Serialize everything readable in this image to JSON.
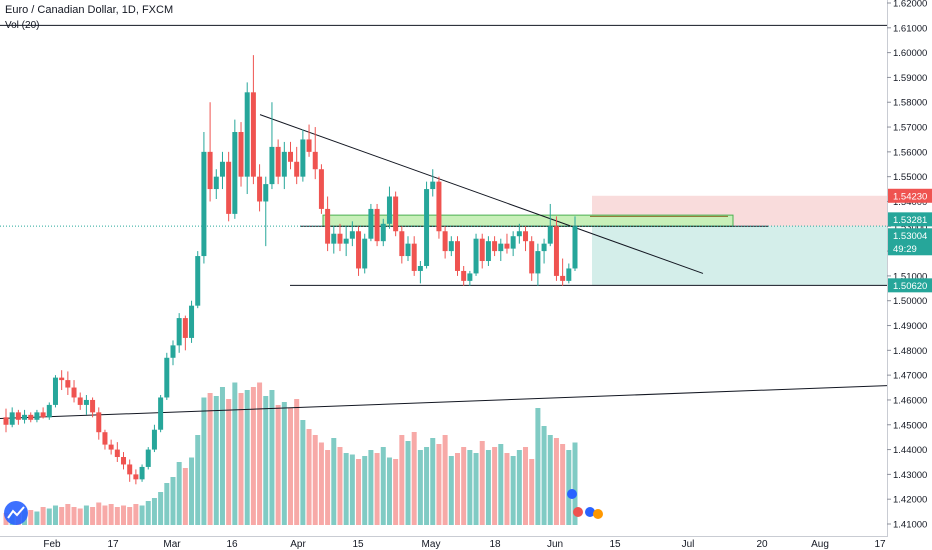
{
  "header": {
    "title": "Euro / Canadian Dollar, 1D, FXCM",
    "volume_label": "Vol (20)"
  },
  "chart_data": {
    "type": "candlestick",
    "symbol": "EURCAD",
    "timeframe": "1D",
    "y_axis": {
      "range": [
        1.41,
        1.62
      ],
      "ticks": [
        "1.62000",
        "1.61000",
        "1.60000",
        "1.59000",
        "1.58000",
        "1.57000",
        "1.56000",
        "1.55000",
        "1.54000",
        "1.53000",
        "1.52000",
        "1.51000",
        "1.50000",
        "1.49000",
        "1.48000",
        "1.47000",
        "1.46000",
        "1.45000",
        "1.44000",
        "1.43000",
        "1.42000",
        "1.41000"
      ]
    },
    "x_axis": {
      "tick_labels": [
        "Feb",
        "17",
        "Mar",
        "16",
        "Apr",
        "15",
        "May",
        "18",
        "Jun",
        "15",
        "Jul",
        "20",
        "Aug",
        "17"
      ]
    },
    "price_labels": [
      {
        "value": "1.54230",
        "color": "#ef5350"
      },
      {
        "value": "1.53281",
        "color": "#26a69a"
      },
      {
        "value": "1.53004",
        "color": "#26a69a"
      },
      {
        "value": "49:29",
        "color": "#26a69a"
      },
      {
        "value": "1.50620",
        "color": "#26a69a"
      }
    ],
    "colors": {
      "up": "#26a69a",
      "down": "#ef5350",
      "up_vol": "#80cbc4",
      "down_vol": "#f7a9a7"
    },
    "candles": [
      {
        "o": 1.453,
        "h": 1.4565,
        "l": 1.447,
        "c": 1.45
      },
      {
        "o": 1.45,
        "h": 1.457,
        "l": 1.449,
        "c": 1.455
      },
      {
        "o": 1.455,
        "h": 1.456,
        "l": 1.45,
        "c": 1.452
      },
      {
        "o": 1.452,
        "h": 1.456,
        "l": 1.4505,
        "c": 1.454
      },
      {
        "o": 1.454,
        "h": 1.455,
        "l": 1.451,
        "c": 1.452
      },
      {
        "o": 1.452,
        "h": 1.456,
        "l": 1.451,
        "c": 1.455
      },
      {
        "o": 1.455,
        "h": 1.457,
        "l": 1.4525,
        "c": 1.453
      },
      {
        "o": 1.453,
        "h": 1.459,
        "l": 1.452,
        "c": 1.458
      },
      {
        "o": 1.458,
        "h": 1.47,
        "l": 1.457,
        "c": 1.469
      },
      {
        "o": 1.469,
        "h": 1.472,
        "l": 1.464,
        "c": 1.468
      },
      {
        "o": 1.468,
        "h": 1.4715,
        "l": 1.462,
        "c": 1.465
      },
      {
        "o": 1.465,
        "h": 1.468,
        "l": 1.459,
        "c": 1.461
      },
      {
        "o": 1.461,
        "h": 1.463,
        "l": 1.456,
        "c": 1.458
      },
      {
        "o": 1.458,
        "h": 1.462,
        "l": 1.454,
        "c": 1.46
      },
      {
        "o": 1.46,
        "h": 1.461,
        "l": 1.453,
        "c": 1.455
      },
      {
        "o": 1.455,
        "h": 1.457,
        "l": 1.444,
        "c": 1.447
      },
      {
        "o": 1.447,
        "h": 1.448,
        "l": 1.44,
        "c": 1.442
      },
      {
        "o": 1.442,
        "h": 1.444,
        "l": 1.438,
        "c": 1.44
      },
      {
        "o": 1.44,
        "h": 1.443,
        "l": 1.435,
        "c": 1.437
      },
      {
        "o": 1.437,
        "h": 1.439,
        "l": 1.432,
        "c": 1.434
      },
      {
        "o": 1.434,
        "h": 1.436,
        "l": 1.427,
        "c": 1.43
      },
      {
        "o": 1.43,
        "h": 1.432,
        "l": 1.426,
        "c": 1.428
      },
      {
        "o": 1.428,
        "h": 1.434,
        "l": 1.427,
        "c": 1.433
      },
      {
        "o": 1.433,
        "h": 1.441,
        "l": 1.432,
        "c": 1.44
      },
      {
        "o": 1.44,
        "h": 1.45,
        "l": 1.439,
        "c": 1.448
      },
      {
        "o": 1.448,
        "h": 1.462,
        "l": 1.447,
        "c": 1.461
      },
      {
        "o": 1.461,
        "h": 1.479,
        "l": 1.46,
        "c": 1.477
      },
      {
        "o": 1.477,
        "h": 1.484,
        "l": 1.474,
        "c": 1.482
      },
      {
        "o": 1.482,
        "h": 1.495,
        "l": 1.479,
        "c": 1.493
      },
      {
        "o": 1.493,
        "h": 1.494,
        "l": 1.48,
        "c": 1.485
      },
      {
        "o": 1.485,
        "h": 1.5,
        "l": 1.483,
        "c": 1.498
      },
      {
        "o": 1.498,
        "h": 1.52,
        "l": 1.497,
        "c": 1.518
      },
      {
        "o": 1.518,
        "h": 1.568,
        "l": 1.515,
        "c": 1.56
      },
      {
        "o": 1.56,
        "h": 1.58,
        "l": 1.54,
        "c": 1.545
      },
      {
        "o": 1.545,
        "h": 1.553,
        "l": 1.541,
        "c": 1.55
      },
      {
        "o": 1.55,
        "h": 1.56,
        "l": 1.545,
        "c": 1.556
      },
      {
        "o": 1.556,
        "h": 1.56,
        "l": 1.532,
        "c": 1.535
      },
      {
        "o": 1.535,
        "h": 1.573,
        "l": 1.533,
        "c": 1.568
      },
      {
        "o": 1.568,
        "h": 1.572,
        "l": 1.546,
        "c": 1.55
      },
      {
        "o": 1.55,
        "h": 1.588,
        "l": 1.543,
        "c": 1.584
      },
      {
        "o": 1.584,
        "h": 1.599,
        "l": 1.547,
        "c": 1.55
      },
      {
        "o": 1.55,
        "h": 1.555,
        "l": 1.536,
        "c": 1.54
      },
      {
        "o": 1.54,
        "h": 1.55,
        "l": 1.522,
        "c": 1.547
      },
      {
        "o": 1.547,
        "h": 1.58,
        "l": 1.545,
        "c": 1.562
      },
      {
        "o": 1.562,
        "h": 1.565,
        "l": 1.547,
        "c": 1.55
      },
      {
        "o": 1.55,
        "h": 1.564,
        "l": 1.545,
        "c": 1.56
      },
      {
        "o": 1.56,
        "h": 1.564,
        "l": 1.553,
        "c": 1.556
      },
      {
        "o": 1.556,
        "h": 1.562,
        "l": 1.547,
        "c": 1.55
      },
      {
        "o": 1.55,
        "h": 1.569,
        "l": 1.548,
        "c": 1.565
      },
      {
        "o": 1.565,
        "h": 1.571,
        "l": 1.558,
        "c": 1.56
      },
      {
        "o": 1.56,
        "h": 1.57,
        "l": 1.549,
        "c": 1.553
      },
      {
        "o": 1.553,
        "h": 1.555,
        "l": 1.535,
        "c": 1.537
      },
      {
        "o": 1.537,
        "h": 1.542,
        "l": 1.52,
        "c": 1.523
      },
      {
        "o": 1.523,
        "h": 1.53,
        "l": 1.519,
        "c": 1.527
      },
      {
        "o": 1.527,
        "h": 1.531,
        "l": 1.52,
        "c": 1.523
      },
      {
        "o": 1.523,
        "h": 1.53,
        "l": 1.518,
        "c": 1.525
      },
      {
        "o": 1.525,
        "h": 1.532,
        "l": 1.522,
        "c": 1.528
      },
      {
        "o": 1.528,
        "h": 1.53,
        "l": 1.51,
        "c": 1.513
      },
      {
        "o": 1.513,
        "h": 1.527,
        "l": 1.511,
        "c": 1.525
      },
      {
        "o": 1.525,
        "h": 1.539,
        "l": 1.524,
        "c": 1.537
      },
      {
        "o": 1.537,
        "h": 1.539,
        "l": 1.522,
        "c": 1.524
      },
      {
        "o": 1.524,
        "h": 1.533,
        "l": 1.522,
        "c": 1.531
      },
      {
        "o": 1.531,
        "h": 1.546,
        "l": 1.529,
        "c": 1.542
      },
      {
        "o": 1.542,
        "h": 1.544,
        "l": 1.526,
        "c": 1.528
      },
      {
        "o": 1.528,
        "h": 1.53,
        "l": 1.515,
        "c": 1.518
      },
      {
        "o": 1.518,
        "h": 1.526,
        "l": 1.516,
        "c": 1.523
      },
      {
        "o": 1.523,
        "h": 1.526,
        "l": 1.51,
        "c": 1.512
      },
      {
        "o": 1.512,
        "h": 1.516,
        "l": 1.507,
        "c": 1.514
      },
      {
        "o": 1.514,
        "h": 1.548,
        "l": 1.513,
        "c": 1.545
      },
      {
        "o": 1.545,
        "h": 1.553,
        "l": 1.542,
        "c": 1.548
      },
      {
        "o": 1.548,
        "h": 1.55,
        "l": 1.525,
        "c": 1.528
      },
      {
        "o": 1.528,
        "h": 1.53,
        "l": 1.517,
        "c": 1.52
      },
      {
        "o": 1.52,
        "h": 1.526,
        "l": 1.518,
        "c": 1.524
      },
      {
        "o": 1.524,
        "h": 1.526,
        "l": 1.51,
        "c": 1.512
      },
      {
        "o": 1.512,
        "h": 1.514,
        "l": 1.506,
        "c": 1.508
      },
      {
        "o": 1.508,
        "h": 1.512,
        "l": 1.506,
        "c": 1.511
      },
      {
        "o": 1.511,
        "h": 1.527,
        "l": 1.51,
        "c": 1.525
      },
      {
        "o": 1.525,
        "h": 1.527,
        "l": 1.513,
        "c": 1.516
      },
      {
        "o": 1.516,
        "h": 1.526,
        "l": 1.514,
        "c": 1.524
      },
      {
        "o": 1.524,
        "h": 1.526,
        "l": 1.518,
        "c": 1.52
      },
      {
        "o": 1.52,
        "h": 1.525,
        "l": 1.516,
        "c": 1.523
      },
      {
        "o": 1.523,
        "h": 1.527,
        "l": 1.519,
        "c": 1.521
      },
      {
        "o": 1.521,
        "h": 1.528,
        "l": 1.518,
        "c": 1.526
      },
      {
        "o": 1.526,
        "h": 1.531,
        "l": 1.523,
        "c": 1.528
      },
      {
        "o": 1.528,
        "h": 1.53,
        "l": 1.52,
        "c": 1.524
      },
      {
        "o": 1.524,
        "h": 1.526,
        "l": 1.508,
        "c": 1.511
      },
      {
        "o": 1.511,
        "h": 1.523,
        "l": 1.506,
        "c": 1.52
      },
      {
        "o": 1.52,
        "h": 1.525,
        "l": 1.515,
        "c": 1.523
      },
      {
        "o": 1.523,
        "h": 1.539,
        "l": 1.522,
        "c": 1.53
      },
      {
        "o": 1.53,
        "h": 1.534,
        "l": 1.508,
        "c": 1.51
      },
      {
        "o": 1.51,
        "h": 1.517,
        "l": 1.506,
        "c": 1.508
      },
      {
        "o": 1.508,
        "h": 1.515,
        "l": 1.507,
        "c": 1.513
      },
      {
        "o": 1.513,
        "h": 1.534,
        "l": 1.512,
        "c": 1.53
      }
    ],
    "volumes": [
      8,
      10,
      9,
      11,
      10,
      9,
      12,
      11,
      13,
      12,
      14,
      12,
      11,
      13,
      12,
      15,
      13,
      14,
      12,
      13,
      12,
      14,
      13,
      16,
      18,
      22,
      28,
      32,
      42,
      38,
      45,
      60,
      85,
      88,
      86,
      92,
      84,
      95,
      88,
      90,
      92,
      95,
      86,
      90,
      80,
      82,
      78,
      84,
      70,
      64,
      60,
      55,
      50,
      58,
      52,
      48,
      47,
      44,
      46,
      50,
      48,
      52,
      45,
      44,
      60,
      56,
      62,
      50,
      52,
      58,
      54,
      60,
      46,
      48,
      52,
      50,
      48,
      56,
      50,
      52,
      54,
      48,
      46,
      50,
      52,
      44,
      78,
      66,
      60,
      58,
      54,
      50,
      55
    ],
    "volume_scale_max": 100
  }
}
